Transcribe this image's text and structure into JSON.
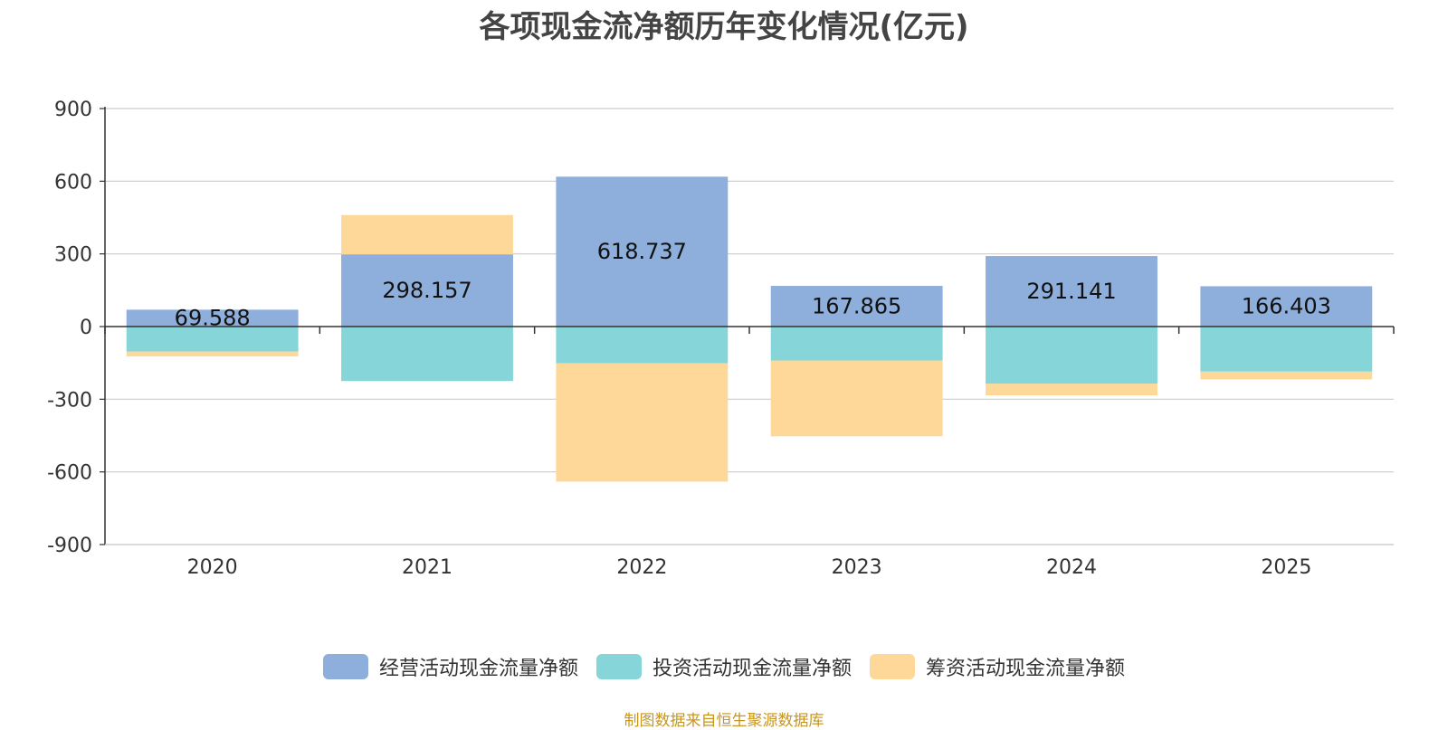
{
  "chart_data": {
    "type": "bar",
    "stacked": true,
    "title": "各项现金流净额历年变化情况(亿元)",
    "categories": [
      "2020",
      "2021",
      "2022",
      "2023",
      "2024",
      "2025"
    ],
    "series": [
      {
        "name": "经营活动现金流量净额",
        "color": "#8eaedb",
        "values": [
          69.588,
          298.157,
          618.737,
          167.865,
          291.141,
          166.403
        ],
        "labels": [
          "69.588",
          "298.157",
          "618.737",
          "167.865",
          "291.141",
          "166.403"
        ]
      },
      {
        "name": "投资活动现金流量净额",
        "color": "#86d5d8",
        "values": [
          -103,
          -225,
          -152,
          -140,
          -236,
          -186
        ]
      },
      {
        "name": "筹资活动现金流量净额",
        "color": "#fdd898",
        "values": [
          -20,
          162,
          -488,
          -313,
          -48,
          -32
        ]
      }
    ],
    "ylim": [
      -900,
      900
    ],
    "yticks": [
      "900",
      "600",
      "300",
      "0",
      "-300",
      "-600",
      "-900"
    ],
    "ytick_values": [
      900,
      600,
      300,
      0,
      -300,
      -600,
      -900
    ],
    "grid": true,
    "legend_position": "bottom"
  },
  "footer": {
    "source": "制图数据来自恒生聚源数据库"
  }
}
